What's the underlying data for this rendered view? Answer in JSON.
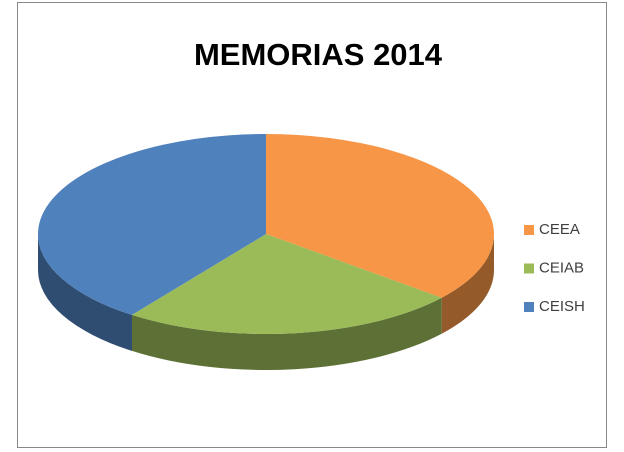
{
  "chart_data": {
    "type": "pie3d",
    "title": "MEMORIAS 2014",
    "categories": [
      "CEEA",
      "CEIAB",
      "CEISH"
    ],
    "values": [
      36,
      24,
      40
    ],
    "colors": [
      "#f79646",
      "#9bbb59",
      "#4f81bd"
    ],
    "legend": "right"
  }
}
